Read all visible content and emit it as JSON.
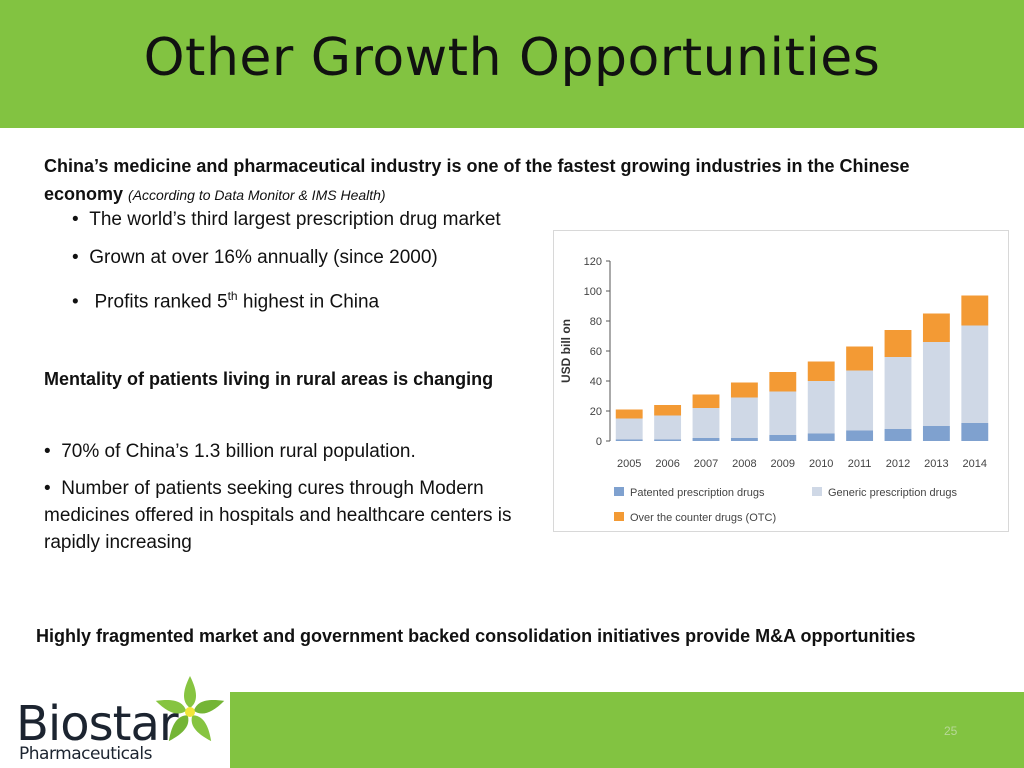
{
  "slide": {
    "title": "Other Growth Opportunities",
    "intro_bold": "China’s medicine and pharmaceutical industry is one of the fastest growing industries in the Chinese economy",
    "intro_source": "(According to Data Monitor & IMS Health)",
    "bullets": [
      "The world’s third largest prescription drug market",
      "Grown at over 16% annually (since 2000)"
    ],
    "bullet3_pre": "Profits ranked 5",
    "bullet3_sup": "th",
    "bullet3_post": " highest in China",
    "section2_heading": "Mentality of patients living in rural areas is changing",
    "section2_bullets": [
      "70% of China’s 1.3 billion rural population.",
      "Number of patients seeking cures through Modern medicines offered in hospitals and healthcare centers is rapidly increasing"
    ],
    "bottom_text": "Highly fragmented market and government backed consolidation initiatives provide M&A opportunities",
    "page_number": "25"
  },
  "logo": {
    "name": "Biostar",
    "sub": "Pharmaceuticals"
  },
  "colors": {
    "header_green": "#82c341",
    "patented": "#7fa1cf",
    "generic": "#cfd8e6",
    "otc": "#f39a34"
  },
  "chart_data": {
    "type": "bar",
    "stacked": true,
    "categories": [
      "2005",
      "2006",
      "2007",
      "2008",
      "2009",
      "2010",
      "2011",
      "2012",
      "2013",
      "2014"
    ],
    "series": [
      {
        "name": "Patented prescription drugs",
        "color": "#7fa1cf",
        "values": [
          1,
          1,
          2,
          2,
          4,
          5,
          7,
          8,
          10,
          12
        ]
      },
      {
        "name": "Generic prescription drugs",
        "color": "#cfd8e6",
        "values": [
          14,
          16,
          20,
          27,
          29,
          35,
          40,
          48,
          56,
          65
        ]
      },
      {
        "name": "Over the counter drugs (OTC)",
        "color": "#f39a34",
        "values": [
          6,
          7,
          9,
          10,
          13,
          13,
          16,
          18,
          19,
          20
        ]
      }
    ],
    "ylabel": "USD bill on",
    "ylim": [
      0,
      120
    ],
    "yticks": [
      0,
      20,
      40,
      60,
      80,
      100,
      120
    ],
    "grid": false,
    "legend_position": "bottom"
  }
}
